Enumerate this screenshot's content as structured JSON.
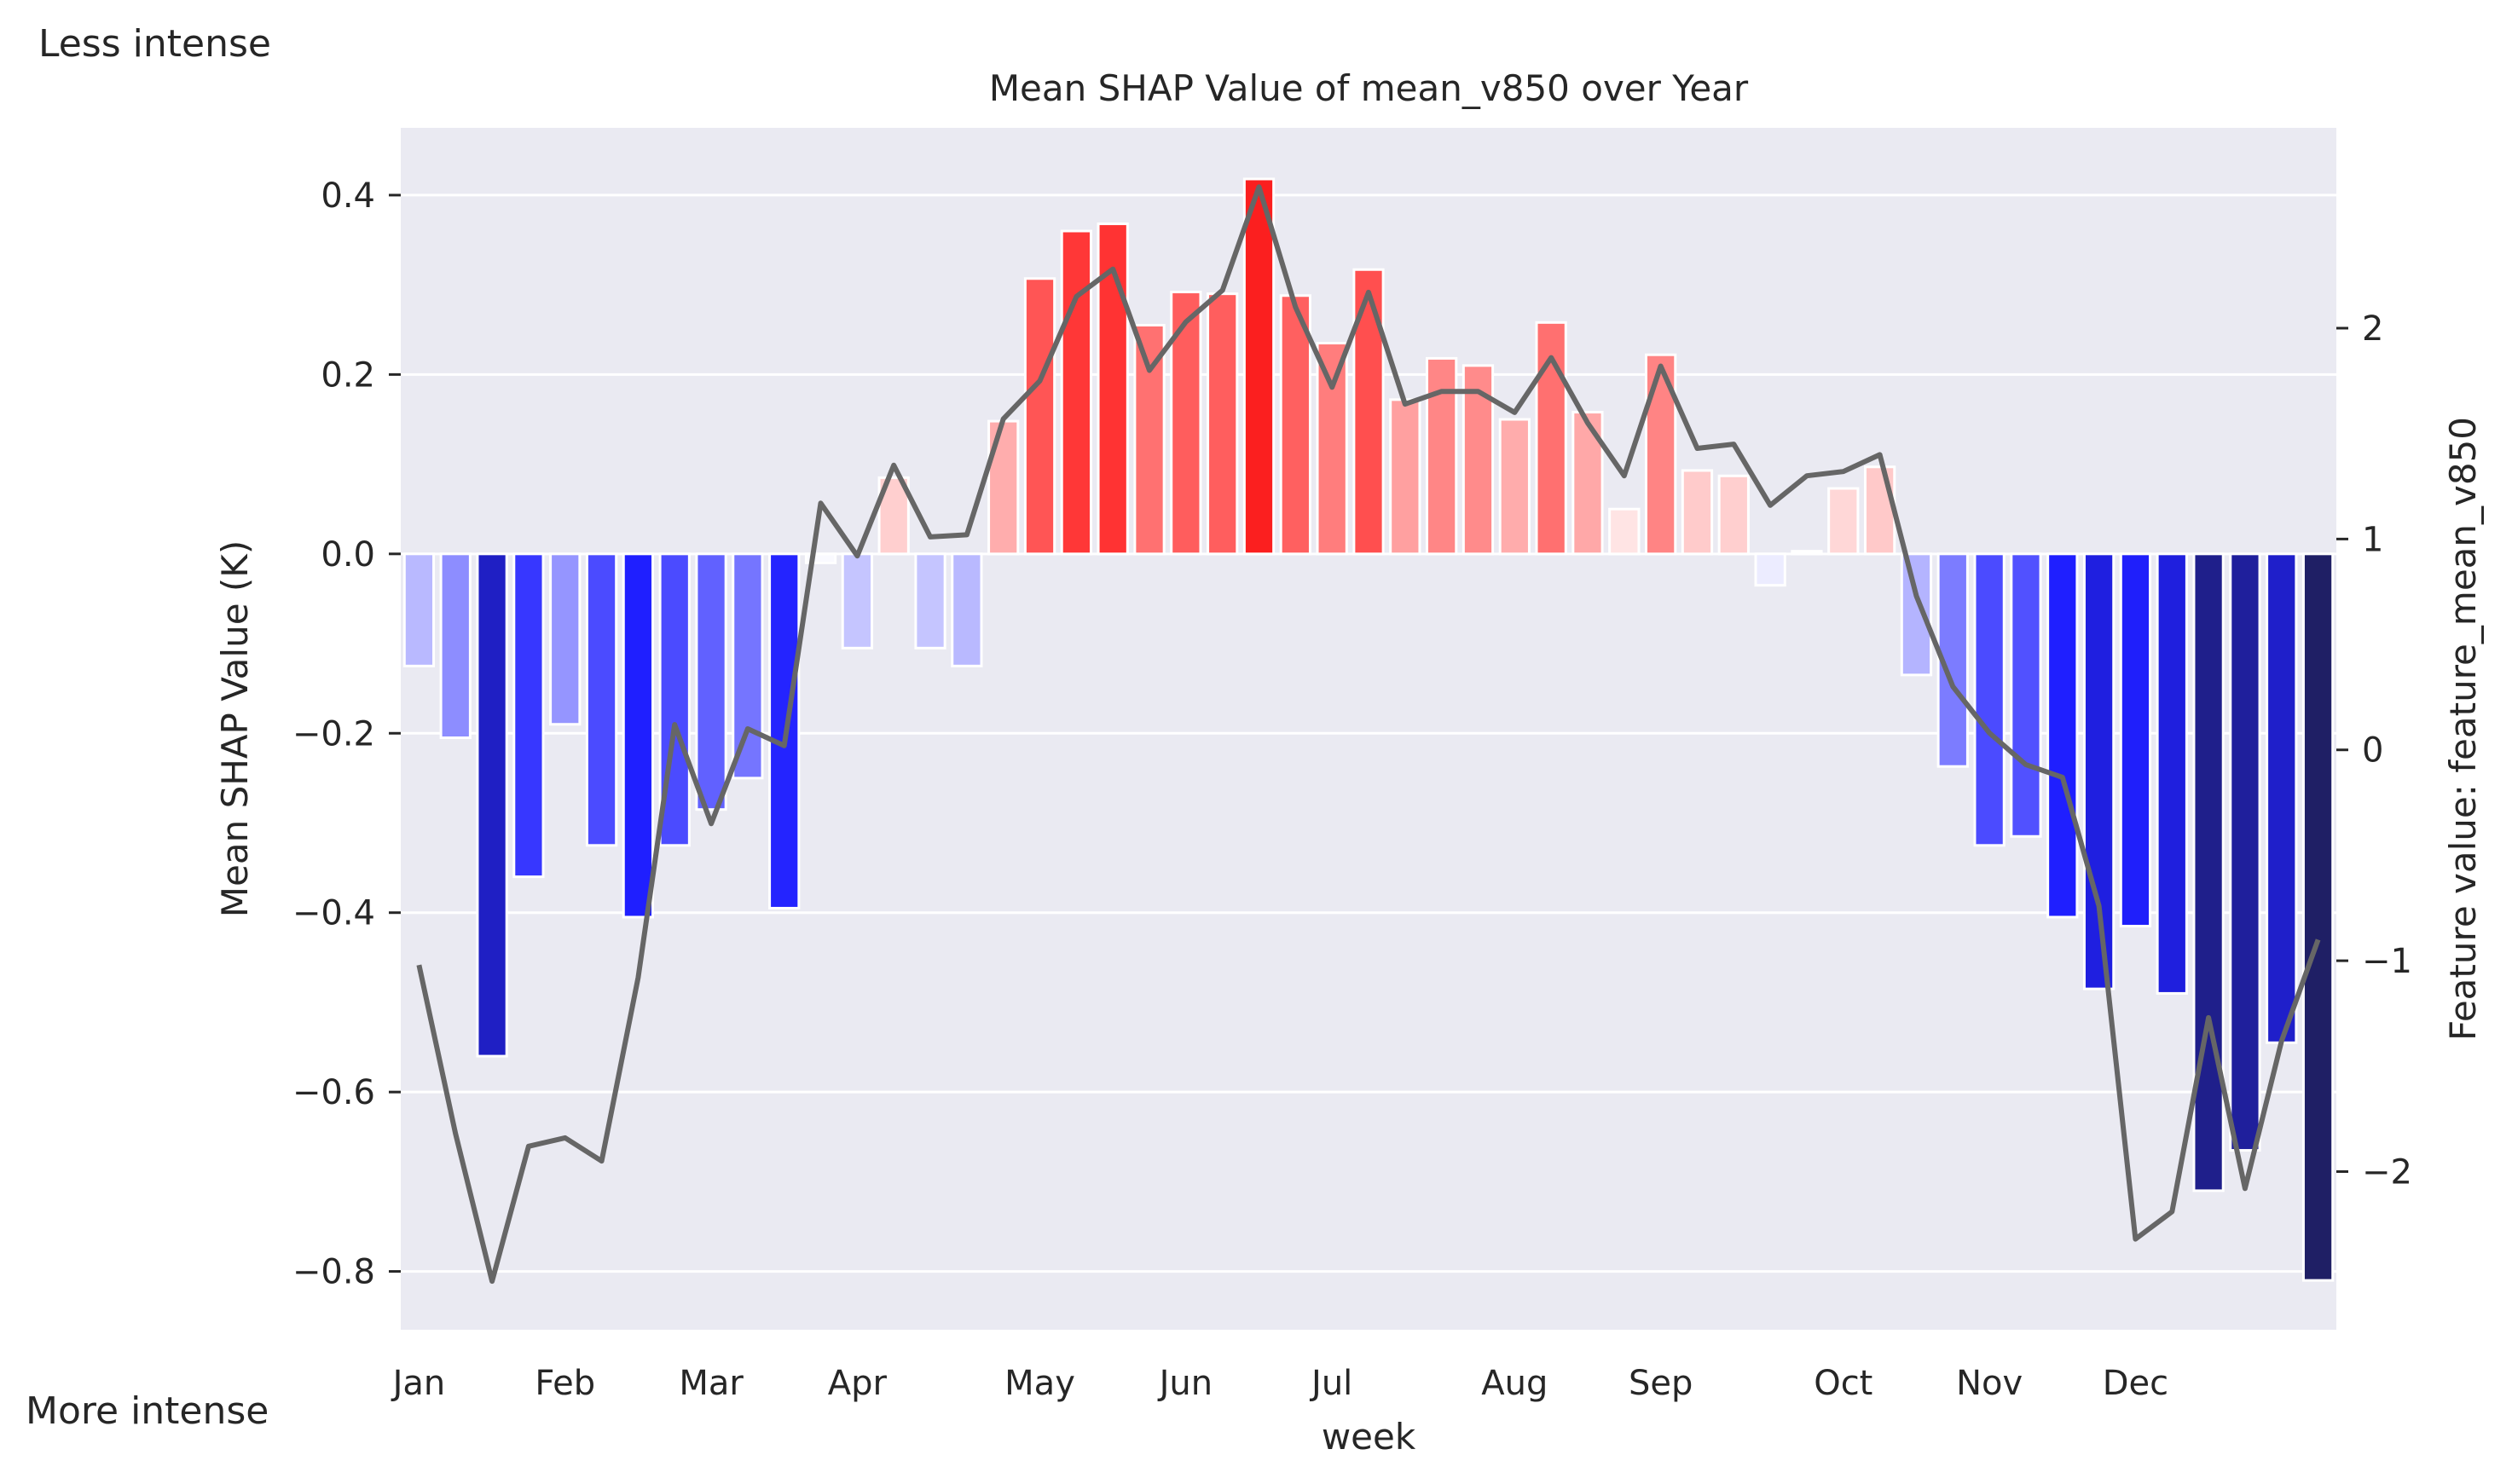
{
  "chart_data": {
    "type": "bar",
    "title": "Mean SHAP Value of mean_v850 over Year",
    "xlabel": "week",
    "ylabel": "Mean SHAP Value (K)",
    "y2label": "Feature value: feature_mean_v850",
    "top_note": "Less intense",
    "bottom_note": "More intense",
    "ylim": [
      -0.865,
      0.475
    ],
    "y2lim": [
      -2.75,
      2.95
    ],
    "yticks": [
      "0.4",
      "0.2",
      "0.0",
      "−0.2",
      "−0.4",
      "−0.6",
      "−0.8"
    ],
    "ytick_values": [
      0.4,
      0.2,
      0.0,
      -0.2,
      -0.4,
      -0.6,
      -0.8
    ],
    "y2ticks": [
      "2",
      "1",
      "0",
      "−1",
      "−2"
    ],
    "y2tick_values": [
      2,
      1,
      0,
      -1,
      -2
    ],
    "month_labels": [
      "Jan",
      "Feb",
      "Mar",
      "Apr",
      "May",
      "Jun",
      "Jul",
      "Aug",
      "Sep",
      "Oct",
      "Nov",
      "Dec"
    ],
    "month_week_index": [
      0,
      4,
      8,
      12,
      17,
      21,
      25,
      30,
      34,
      39,
      43,
      47
    ],
    "grid": true,
    "bar_color_scale": "seismic: dark blue (negative) to white to red (positive), by bar value",
    "series": [
      {
        "kind": "bar",
        "axis": "left",
        "values": [
          -0.125,
          -0.205,
          -0.56,
          -0.36,
          -0.19,
          -0.325,
          -0.405,
          -0.325,
          -0.285,
          -0.25,
          -0.395,
          -0.01,
          -0.105,
          0.085,
          -0.105,
          -0.125,
          0.148,
          0.307,
          0.36,
          0.368,
          0.255,
          0.292,
          0.29,
          0.418,
          0.288,
          0.235,
          0.317,
          0.172,
          0.218,
          0.21,
          0.15,
          0.258,
          0.158,
          0.05,
          0.222,
          0.093,
          0.087,
          -0.035,
          0.003,
          0.073,
          0.097,
          -0.135,
          -0.237,
          -0.325,
          -0.315,
          -0.405,
          -0.485,
          -0.415,
          -0.49,
          -0.71,
          -0.665,
          -0.545,
          -0.81
        ]
      },
      {
        "kind": "line",
        "axis": "right",
        "color": "#666666",
        "values": [
          -1.02,
          -1.82,
          -2.52,
          -1.88,
          -1.84,
          -1.95,
          -1.08,
          0.12,
          -0.35,
          0.1,
          0.02,
          1.17,
          0.92,
          1.35,
          1.01,
          1.02,
          1.57,
          1.75,
          2.15,
          2.28,
          1.8,
          2.03,
          2.18,
          2.67,
          2.1,
          1.72,
          2.17,
          1.64,
          1.7,
          1.7,
          1.6,
          1.86,
          1.55,
          1.3,
          1.82,
          1.43,
          1.45,
          1.16,
          1.3,
          1.32,
          1.4,
          0.73,
          0.3,
          0.08,
          -0.07,
          -0.13,
          -0.74,
          -2.32,
          -2.19,
          -1.27,
          -2.08,
          -1.38,
          -0.9
        ]
      }
    ]
  }
}
